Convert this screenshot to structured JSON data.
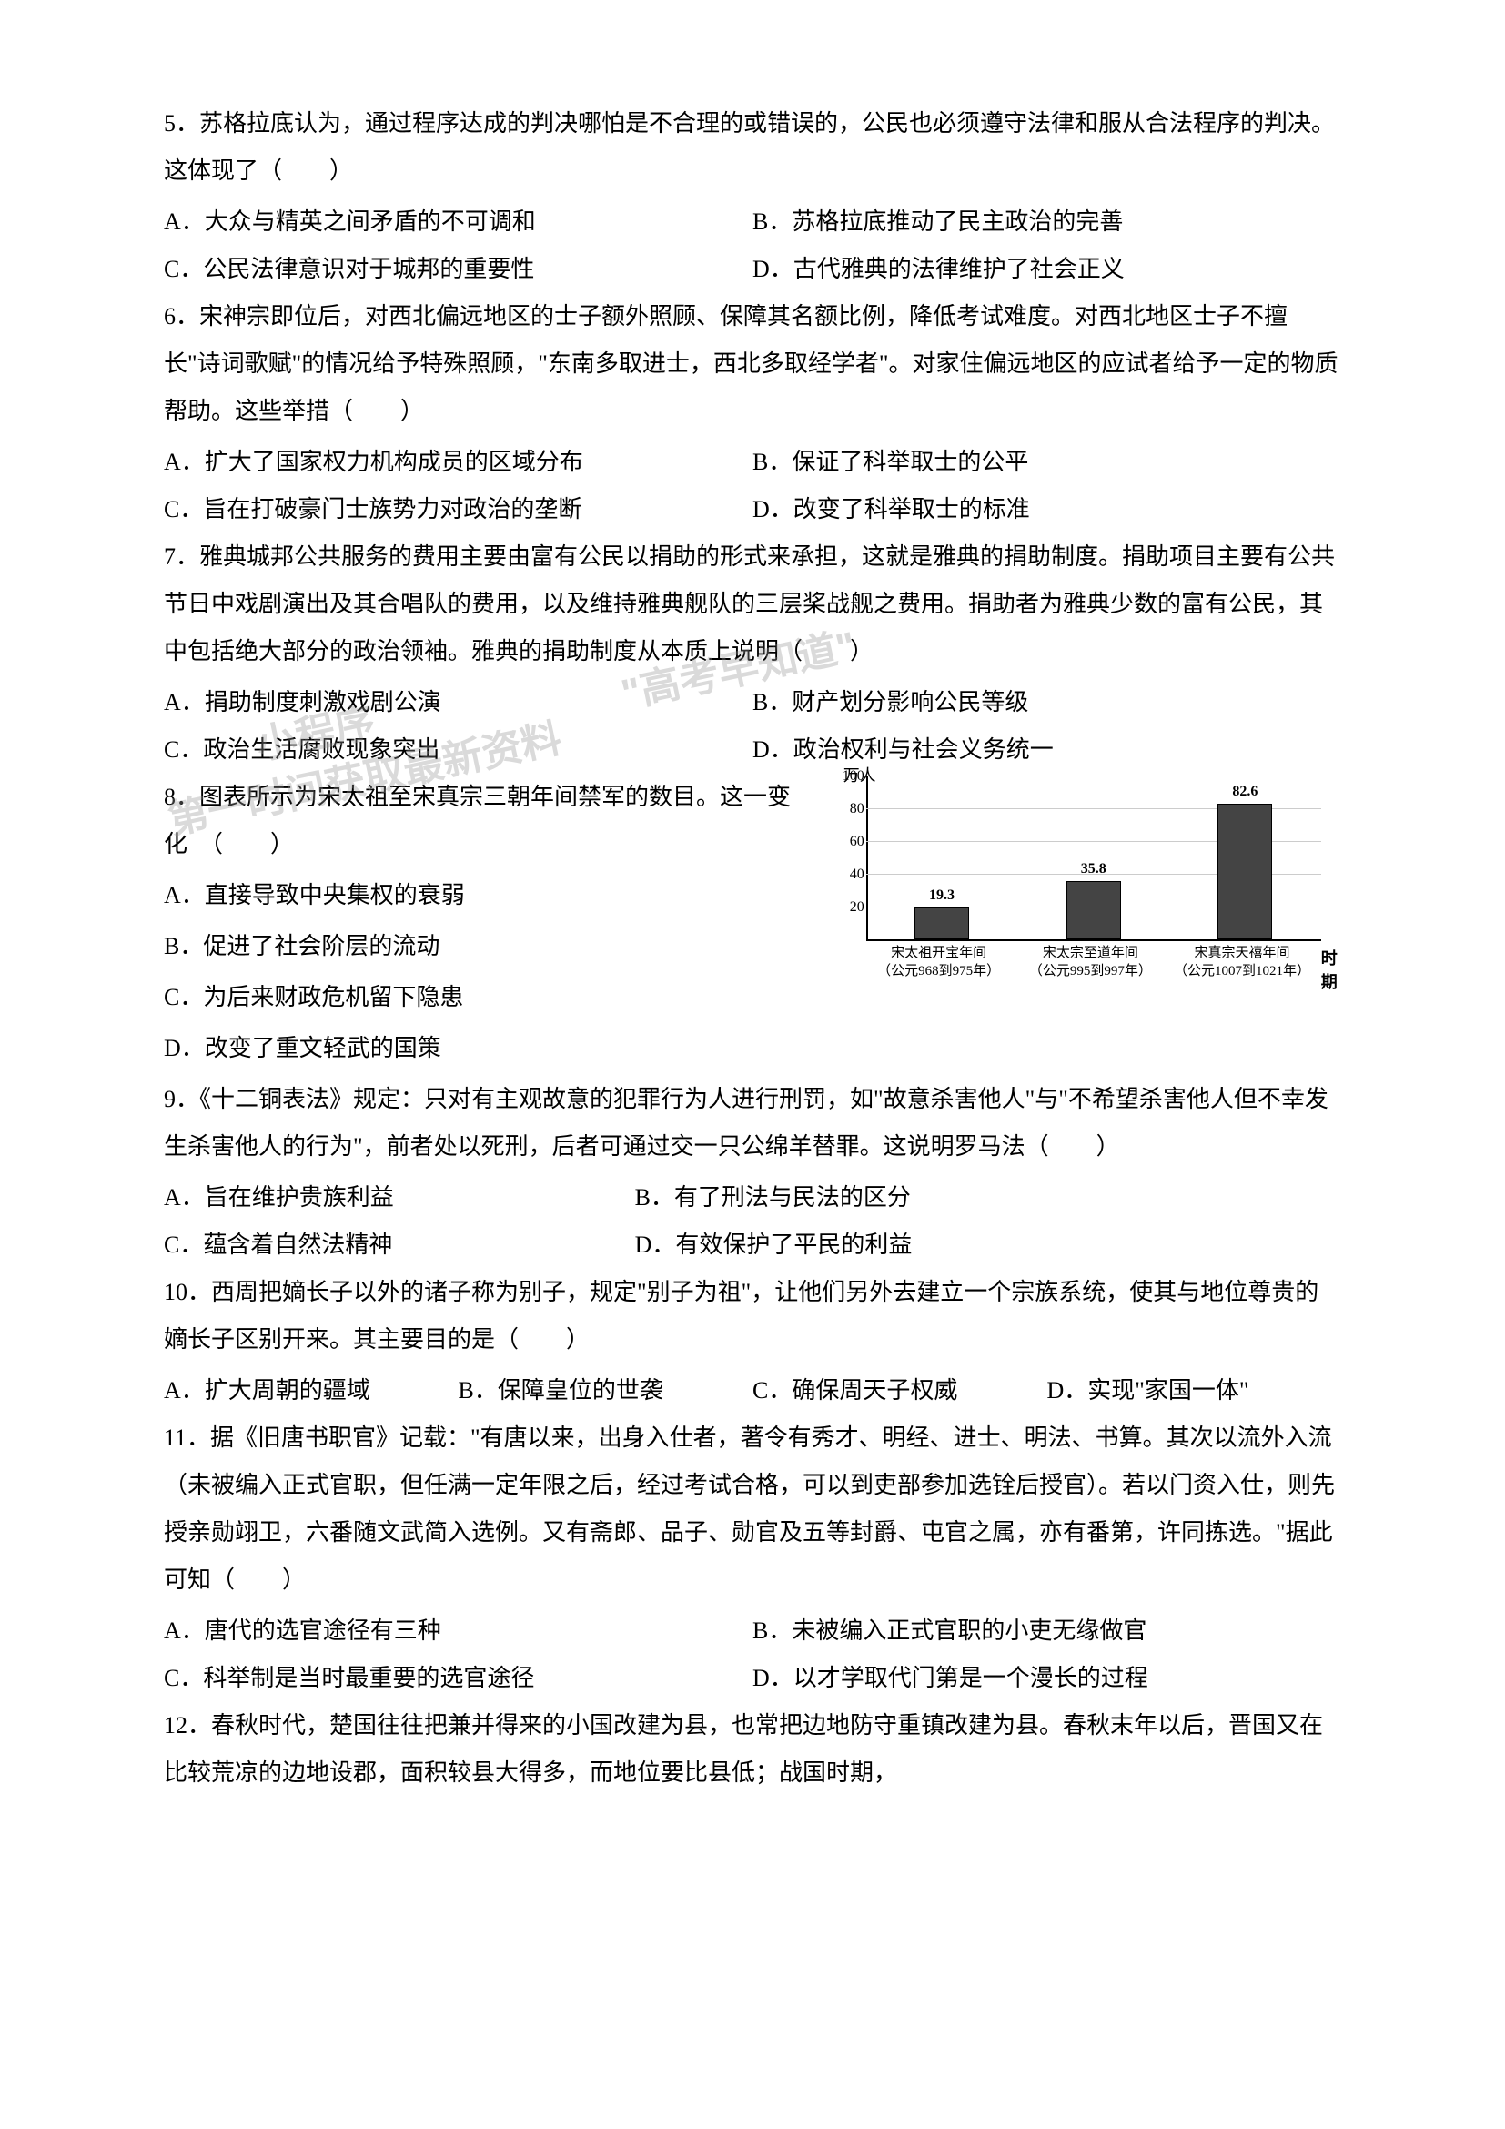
{
  "q5": {
    "text": "5．苏格拉底认为，通过程序达成的判决哪怕是不合理的或错误的，公民也必须遵守法律和服从合法程序的判决。这体现了（　　）",
    "opts": {
      "A": "A．大众与精英之间矛盾的不可调和",
      "B": "B．苏格拉底推动了民主政治的完善",
      "C": "C．公民法律意识对于城邦的重要性",
      "D": "D．古代雅典的法律维护了社会正义"
    }
  },
  "q6": {
    "text": "6．宋神宗即位后，对西北偏远地区的士子额外照顾、保障其名额比例，降低考试难度。对西北地区士子不擅长\"诗词歌赋\"的情况给予特殊照顾，\"东南多取进士，西北多取经学者\"。对家住偏远地区的应试者给予一定的物质帮助。这些举措（　　）",
    "opts": {
      "A": "A．扩大了国家权力机构成员的区域分布",
      "B": "B．保证了科举取士的公平",
      "C": "C．旨在打破豪门士族势力对政治的垄断",
      "D": "D．改变了科举取士的标准"
    }
  },
  "q7": {
    "text": "7．雅典城邦公共服务的费用主要由富有公民以捐助的形式来承担，这就是雅典的捐助制度。捐助项目主要有公共节日中戏剧演出及其合唱队的费用，以及维持雅典舰队的三层桨战舰之费用。捐助者为雅典少数的富有公民，其中包括绝大部分的政治领袖。雅典的捐助制度从本质上说明（　　）",
    "opts": {
      "A": "A．捐助制度刺激戏剧公演",
      "B": "B．财产划分影响公民等级",
      "C": "C．政治生活腐败现象突出",
      "D": "D．政治权利与社会义务统一"
    }
  },
  "q8": {
    "text": "8．图表所示为宋太祖至宋真宗三朝年间禁军的数目。这一变化　（　　）",
    "opts": {
      "A": "A．直接导致中央集权的衰弱",
      "B": "B．促进了社会阶层的流动",
      "C": "C．为后来财政危机留下隐患",
      "D": "D．改变了重文轻武的国策"
    }
  },
  "chart": {
    "y_label": "万人",
    "y_max": 100,
    "y_ticks": [
      20,
      40,
      60,
      80,
      100
    ],
    "x_label_end": "时期",
    "bars": [
      {
        "label": "19.3",
        "value": 19.3,
        "cat1": "宋太祖开宝年间",
        "cat2": "（公元968到975年）"
      },
      {
        "label": "35.8",
        "value": 35.8,
        "cat1": "宋太宗至道年间",
        "cat2": "（公元995到997年）"
      },
      {
        "label": "82.6",
        "value": 82.6,
        "cat1": "宋真宗天禧年间",
        "cat2": "（公元1007到1021年）"
      }
    ],
    "bar_color": "#444444",
    "grid_color": "#cccccc"
  },
  "q9": {
    "text": "9．《十二铜表法》规定：只对有主观故意的犯罪行为人进行刑罚，如\"故意杀害他人\"与\"不希望杀害他人但不幸发生杀害他人的行为\"，前者处以死刑，后者可通过交一只公绵羊替罪。这说明罗马法（　　）",
    "opts": {
      "A": "A．旨在维护贵族利益",
      "B": "B．有了刑法与民法的区分",
      "C": "C．蕴含着自然法精神",
      "D": "D．有效保护了平民的利益"
    }
  },
  "q10": {
    "text": "10．西周把嫡长子以外的诸子称为别子，规定\"别子为祖\"，让他们另外去建立一个宗族系统，使其与地位尊贵的嫡长子区别开来。其主要目的是（　　）",
    "opts": {
      "A": "A．扩大周朝的疆域",
      "B": "B．保障皇位的世袭",
      "C": "C．确保周天子权威",
      "D": "D．实现\"家国一体\""
    }
  },
  "q11": {
    "text": "11．据《旧唐书职官》记载：\"有唐以来，出身入仕者，著令有秀才、明经、进士、明法、书算。其次以流外入流（未被编入正式官职，但任满一定年限之后，经过考试合格，可以到吏部参加选铨后授官）。若以门资入仕，则先授亲勋翊卫，六番随文武简入选例。又有斋郎、品子、勋官及五等封爵、屯官之属，亦有番第，许同拣选。\"据此可知（　　）",
    "opts": {
      "A": "A．唐代的选官途径有三种",
      "B": "B．未被编入正式官职的小吏无缘做官",
      "C": "C．科举制是当时最重要的选官途径",
      "D": "D．以才学取代门第是一个漫长的过程"
    }
  },
  "q12": {
    "text": "12．春秋时代，楚国往往把兼并得来的小国改建为县，也常把边地防守重镇改建为县。春秋末年以后，晋国又在比较荒凉的边地设郡，面积较县大得多，而地位要比县低；战国时期，"
  },
  "watermark": {
    "line1": "\"高考早知道\"",
    "line2": "第一时间获取最新资料",
    "line_pre": "小程序"
  }
}
